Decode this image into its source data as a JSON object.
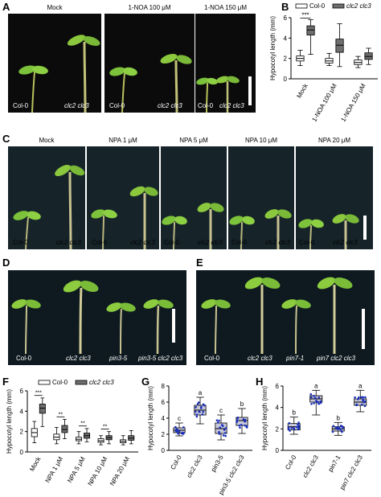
{
  "panel_letters": {
    "A": "A",
    "B": "B",
    "C": "C",
    "D": "D",
    "E": "E",
    "F": "F",
    "G": "G",
    "H": "H"
  },
  "panel_a": {
    "conditions": [
      "Mock",
      "1-NOA 100 μM",
      "1-NOA 150 μM"
    ],
    "captions": [
      "Col-0",
      "clc2 clc3",
      "Col-0",
      "clc2 clc3",
      "Col-0",
      "clc2 clc3"
    ]
  },
  "panel_c": {
    "conditions": [
      "Mock",
      "NPA 1 μM",
      "NPA 5 μM",
      "NPA 10 μM",
      "NPA 20 μM"
    ],
    "captions": [
      "Col-0",
      "clc2 clc3",
      "Col-0",
      "clc2 clc3",
      "Col-0",
      "clc2 clc3",
      "Col-0",
      "clc2 clc3",
      "Col-0",
      "clc2 clc3"
    ]
  },
  "panel_d": {
    "captions": [
      "Col-0",
      "clc2 clc3",
      "pin3-5",
      "pin3-5 clc2 clc3"
    ]
  },
  "panel_e": {
    "captions": [
      "Col-0",
      "clc2 clc3",
      "pin7-1",
      "pin7 clc2 clc3"
    ]
  },
  "colors": {
    "col0_box": "#ffffff",
    "clc_box": "#6e6e6e",
    "g_box": "#c9c9dc",
    "g_points": "#1a2fb8",
    "photo_bg": "#0b0b0b"
  },
  "chart_data": [
    {
      "id": "B",
      "type": "box",
      "ylabel": "Hypocotyl length (mm)",
      "ylim": [
        0,
        6
      ],
      "yticks": [
        0,
        2,
        4,
        6
      ],
      "categories": [
        "Mock",
        "1-NOA 100 μM",
        "1-NOA 150 μM"
      ],
      "legend": [
        "Col-0",
        "clc2 clc3"
      ],
      "series": [
        {
          "name": "Col-0",
          "boxes": [
            {
              "min": 1.3,
              "q1": 1.75,
              "med": 2.0,
              "q3": 2.25,
              "max": 2.8
            },
            {
              "min": 1.3,
              "q1": 1.55,
              "med": 1.75,
              "q3": 2.0,
              "max": 2.5
            },
            {
              "min": 1.1,
              "q1": 1.4,
              "med": 1.6,
              "q3": 1.85,
              "max": 2.2
            }
          ]
        },
        {
          "name": "clc2 clc3",
          "boxes": [
            {
              "min": 2.4,
              "q1": 4.3,
              "med": 4.8,
              "q3": 5.2,
              "max": 5.8
            },
            {
              "min": 1.2,
              "q1": 2.6,
              "med": 3.3,
              "q3": 3.9,
              "max": 5.4
            },
            {
              "min": 1.4,
              "q1": 1.9,
              "med": 2.2,
              "q3": 2.55,
              "max": 3.0
            }
          ]
        }
      ],
      "annotations": [
        "***"
      ]
    },
    {
      "id": "F",
      "type": "box",
      "ylabel": "Hypocotyl length (mm)",
      "ylim": [
        0,
        6
      ],
      "yticks": [
        0,
        2,
        4,
        6
      ],
      "categories": [
        "Mock",
        "NPA 1 μM",
        "NPA 5 μM",
        "NPA 10 μM",
        "NPA 20 μM"
      ],
      "legend": [
        "Col-0",
        "clc2 clc3"
      ],
      "series": [
        {
          "name": "Col-0",
          "boxes": [
            {
              "min": 0.9,
              "q1": 1.5,
              "med": 1.9,
              "q3": 2.3,
              "max": 3.0
            },
            {
              "min": 0.8,
              "q1": 1.2,
              "med": 1.45,
              "q3": 1.75,
              "max": 2.4
            },
            {
              "min": 0.8,
              "q1": 1.1,
              "med": 1.25,
              "q3": 1.45,
              "max": 2.0
            },
            {
              "min": 0.7,
              "q1": 0.95,
              "med": 1.1,
              "q3": 1.3,
              "max": 1.6
            },
            {
              "min": 0.7,
              "q1": 0.9,
              "med": 1.05,
              "q3": 1.2,
              "max": 1.6
            }
          ]
        },
        {
          "name": "clc2 clc3",
          "boxes": [
            {
              "min": 2.5,
              "q1": 3.8,
              "med": 4.3,
              "q3": 4.7,
              "max": 5.3
            },
            {
              "min": 1.3,
              "q1": 1.9,
              "med": 2.2,
              "q3": 2.6,
              "max": 3.2
            },
            {
              "min": 1.0,
              "q1": 1.35,
              "med": 1.6,
              "q3": 1.85,
              "max": 2.3
            },
            {
              "min": 0.8,
              "q1": 1.2,
              "med": 1.4,
              "q3": 1.6,
              "max": 2.0
            },
            {
              "min": 0.8,
              "q1": 1.15,
              "med": 1.35,
              "q3": 1.6,
              "max": 2.1
            }
          ]
        }
      ],
      "annotations": [
        "***",
        "**",
        "**",
        "**"
      ]
    },
    {
      "id": "G",
      "type": "box",
      "ylabel": "Hypocotyl length (mm)",
      "ylim": [
        0,
        8
      ],
      "yticks": [
        0,
        2,
        4,
        6,
        8
      ],
      "categories": [
        "Col-0",
        "clc2 clc3",
        "pin3-5",
        "pin3-5 clc2 clc3"
      ],
      "letters": [
        "c",
        "a",
        "c",
        "b"
      ],
      "boxes": [
        {
          "min": 1.8,
          "q1": 2.2,
          "med": 2.5,
          "q3": 2.8,
          "max": 3.4
        },
        {
          "min": 3.3,
          "q1": 4.4,
          "med": 5.0,
          "q3": 5.6,
          "max": 6.6
        },
        {
          "min": 1.3,
          "q1": 2.1,
          "med": 2.7,
          "q3": 3.4,
          "max": 4.4
        },
        {
          "min": 2.1,
          "q1": 3.1,
          "med": 3.7,
          "q3": 4.1,
          "max": 5.2
        }
      ]
    },
    {
      "id": "H",
      "type": "box",
      "ylabel": "Hypocotyl length (mm)",
      "ylim": [
        0,
        6
      ],
      "yticks": [
        0,
        2,
        4,
        6
      ],
      "categories": [
        "Col-0",
        "clc2 clc3",
        "pin7-1",
        "pin7 clc2 clc3"
      ],
      "letters": [
        "b",
        "a",
        "b",
        "a"
      ],
      "boxes": [
        {
          "min": 1.5,
          "q1": 1.9,
          "med": 2.2,
          "q3": 2.5,
          "max": 3.1
        },
        {
          "min": 3.3,
          "q1": 4.5,
          "med": 4.8,
          "q3": 5.1,
          "max": 5.6
        },
        {
          "min": 1.4,
          "q1": 1.8,
          "med": 2.0,
          "q3": 2.2,
          "max": 2.6
        },
        {
          "min": 3.6,
          "q1": 4.2,
          "med": 4.5,
          "q3": 4.8,
          "max": 5.6
        }
      ]
    }
  ]
}
